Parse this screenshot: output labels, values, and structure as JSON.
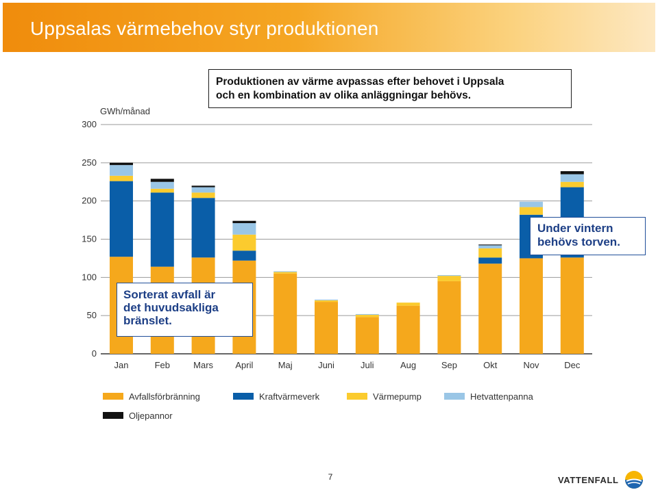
{
  "slide": {
    "title": "Uppsalas värmebehov styr produktionen",
    "callout_top_line1": "Produktionen av värme avpassas efter behovet i Uppsala",
    "callout_top_line2": "och en kombination av olika anläggningar behövs.",
    "callout_right_line1": "Under vintern",
    "callout_right_line2": "behövs torven.",
    "callout_left_line1": "Sorterat avfall är",
    "callout_left_line2": "det huvudsakliga",
    "callout_left_line3": "bränslet.",
    "page_number": "7",
    "logo_text": "VATTENFALL",
    "colors": {
      "title_bar": "#f39a14",
      "callout_blue": "#1d3f86"
    }
  },
  "chart_data": {
    "type": "bar",
    "stacked": true,
    "ylabel": "GWh/månad",
    "ylim": [
      0,
      300
    ],
    "yticks": [
      0,
      50,
      100,
      150,
      200,
      250,
      300
    ],
    "grid": true,
    "legend_position": "bottom",
    "categories": [
      "Jan",
      "Feb",
      "Mars",
      "April",
      "Maj",
      "Juni",
      "Juli",
      "Aug",
      "Sep",
      "Okt",
      "Nov",
      "Dec"
    ],
    "series": [
      {
        "name": "Avfallsförbränning",
        "color": "#f5a81c",
        "values": [
          127,
          114,
          126,
          122,
          105,
          68,
          48,
          63,
          95,
          118,
          125,
          126
        ]
      },
      {
        "name": "Kraftvärmeverk",
        "color": "#0a5ea8",
        "values": [
          99,
          97,
          78,
          13,
          0,
          0,
          0,
          0,
          0,
          8,
          57,
          92
        ]
      },
      {
        "name": "Värmepump",
        "color": "#fbcb2e",
        "values": [
          7,
          5,
          7,
          21,
          2,
          2,
          3,
          4,
          7,
          12,
          10,
          7
        ]
      },
      {
        "name": "Hetvattenpanna",
        "color": "#9ac6e6",
        "values": [
          14,
          9,
          7,
          15,
          1,
          1,
          1,
          0,
          1,
          4,
          7,
          10
        ]
      },
      {
        "name": "Oljepannor",
        "color": "#111111",
        "values": [
          3,
          4,
          2,
          3,
          0,
          0,
          0,
          0,
          0,
          1,
          0,
          4
        ]
      }
    ]
  }
}
